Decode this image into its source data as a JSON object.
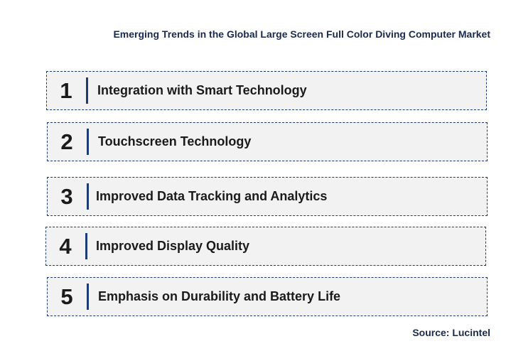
{
  "title": "Emerging Trends in the Global Large Screen Full Color Diving Computer Market",
  "trends": [
    {
      "number": "1",
      "label": "Integration with Smart Technology"
    },
    {
      "number": "2",
      "label": "Touchscreen Technology"
    },
    {
      "number": "3",
      "label": "Improved Data Tracking and Analytics"
    },
    {
      "number": "4",
      "label": "Improved Display Quality"
    },
    {
      "number": "5",
      "label": "Emphasis on Durability and Battery Life"
    }
  ],
  "source": "Source: Lucintel",
  "colors": {
    "accent": "#1f3b73",
    "box_background": "#f2f2f2",
    "text": "#1a1a1a"
  }
}
